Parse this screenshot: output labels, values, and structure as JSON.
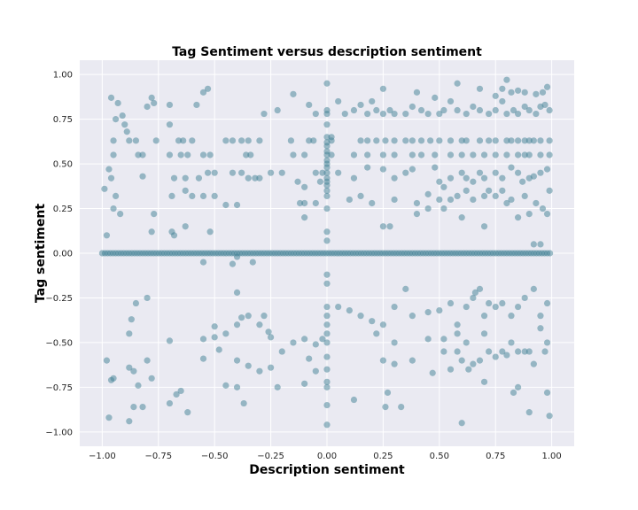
{
  "chart_data": {
    "type": "scatter",
    "title": "Tag Sentiment versus description sentiment",
    "xlabel": "Description sentiment",
    "ylabel": "Tag sentiment",
    "xlim": [
      -1.1,
      1.1
    ],
    "ylim": [
      -1.08,
      1.08
    ],
    "xticks": [
      -1.0,
      -0.75,
      -0.5,
      -0.25,
      0.0,
      0.25,
      0.5,
      0.75,
      1.0
    ],
    "yticks": [
      -1.0,
      -0.75,
      -0.5,
      -0.25,
      0.0,
      0.25,
      0.5,
      0.75,
      1.0
    ],
    "xtick_labels": [
      "−1.00",
      "−0.75",
      "−0.50",
      "−0.25",
      "0.00",
      "0.25",
      "0.50",
      "0.75",
      "1.00"
    ],
    "ytick_labels": [
      "−1.00",
      "−0.75",
      "−0.50",
      "−0.25",
      "0.00",
      "0.25",
      "0.50",
      "0.75",
      "1.00"
    ],
    "grid": true,
    "background_color": "#EAEAF2",
    "point_color": "#3F7F93",
    "point_alpha": 0.5,
    "points": [
      [
        -0.98,
        0.1
      ],
      [
        -0.99,
        0.36
      ],
      [
        -0.97,
        0.47
      ],
      [
        -0.96,
        0.87
      ],
      [
        -0.94,
        0.75
      ],
      [
        -0.93,
        0.84
      ],
      [
        -0.95,
        0.63
      ],
      [
        -0.95,
        0.55
      ],
      [
        -0.96,
        0.42
      ],
      [
        -0.94,
        0.32
      ],
      [
        -0.95,
        0.25
      ],
      [
        -0.92,
        0.22
      ],
      [
        -0.91,
        0.77
      ],
      [
        -0.9,
        0.72
      ],
      [
        -0.89,
        0.68
      ],
      [
        -0.88,
        0.63
      ],
      [
        -0.85,
        0.63
      ],
      [
        -0.84,
        0.55
      ],
      [
        -0.82,
        0.55
      ],
      [
        -0.82,
        0.43
      ],
      [
        -0.8,
        0.82
      ],
      [
        -0.78,
        0.87
      ],
      [
        -0.77,
        0.84
      ],
      [
        -0.78,
        0.12
      ],
      [
        -0.77,
        0.22
      ],
      [
        -0.76,
        0.63
      ],
      [
        -0.7,
        0.83
      ],
      [
        -0.7,
        0.72
      ],
      [
        -0.66,
        0.63
      ],
      [
        -0.64,
        0.63
      ],
      [
        -0.6,
        0.63
      ],
      [
        -0.58,
        0.83
      ],
      [
        -0.55,
        0.9
      ],
      [
        -0.53,
        0.92
      ],
      [
        -0.7,
        0.55
      ],
      [
        -0.65,
        0.55
      ],
      [
        -0.62,
        0.55
      ],
      [
        -0.55,
        0.55
      ],
      [
        -0.52,
        0.55
      ],
      [
        -0.68,
        0.42
      ],
      [
        -0.63,
        0.42
      ],
      [
        -0.57,
        0.42
      ],
      [
        -0.53,
        0.45
      ],
      [
        -0.5,
        0.45
      ],
      [
        -0.69,
        0.32
      ],
      [
        -0.63,
        0.35
      ],
      [
        -0.6,
        0.32
      ],
      [
        -0.55,
        0.32
      ],
      [
        -0.5,
        0.32
      ],
      [
        -0.45,
        0.27
      ],
      [
        -0.4,
        0.27
      ],
      [
        -0.69,
        0.12
      ],
      [
        -0.68,
        0.1
      ],
      [
        -0.63,
        0.15
      ],
      [
        -0.52,
        0.12
      ],
      [
        -0.45,
        0.63
      ],
      [
        -0.42,
        0.63
      ],
      [
        -0.38,
        0.63
      ],
      [
        -0.35,
        0.63
      ],
      [
        -0.3,
        0.63
      ],
      [
        -0.36,
        0.55
      ],
      [
        -0.34,
        0.55
      ],
      [
        -0.42,
        0.45
      ],
      [
        -0.38,
        0.45
      ],
      [
        -0.35,
        0.42
      ],
      [
        -0.32,
        0.42
      ],
      [
        -0.28,
        0.78
      ],
      [
        -0.3,
        0.42
      ],
      [
        -0.25,
        0.45
      ],
      [
        -0.2,
        0.45
      ],
      [
        -0.16,
        0.63
      ],
      [
        -0.15,
        0.55
      ],
      [
        -0.1,
        0.55
      ],
      [
        -0.08,
        0.63
      ],
      [
        -0.06,
        0.63
      ],
      [
        -0.22,
        0.8
      ],
      [
        -0.15,
        0.89
      ],
      [
        -0.08,
        0.83
      ],
      [
        -0.05,
        0.78
      ],
      [
        -0.13,
        0.4
      ],
      [
        -0.1,
        0.37
      ],
      [
        -0.05,
        0.45
      ],
      [
        -0.02,
        0.45
      ],
      [
        -0.03,
        0.4
      ],
      [
        -0.12,
        0.28
      ],
      [
        -0.1,
        0.28
      ],
      [
        -0.05,
        0.28
      ],
      [
        -0.1,
        0.2
      ],
      [
        -0.8,
        -0.25
      ],
      [
        -0.85,
        -0.28
      ],
      [
        -0.87,
        -0.37
      ],
      [
        -0.88,
        -0.45
      ],
      [
        -0.95,
        -0.7
      ],
      [
        -0.96,
        -0.71
      ],
      [
        -0.97,
        -0.92
      ],
      [
        -0.98,
        -0.6
      ],
      [
        -0.88,
        -0.64
      ],
      [
        -0.86,
        -0.66
      ],
      [
        -0.84,
        -0.74
      ],
      [
        -0.82,
        -0.86
      ],
      [
        -0.86,
        -0.86
      ],
      [
        -0.88,
        -0.94
      ],
      [
        -0.8,
        -0.6
      ],
      [
        -0.78,
        -0.7
      ],
      [
        -0.7,
        -0.84
      ],
      [
        -0.67,
        -0.79
      ],
      [
        -0.65,
        -0.77
      ],
      [
        -0.62,
        -0.89
      ],
      [
        -0.7,
        -0.49
      ],
      [
        -0.55,
        -0.48
      ],
      [
        -0.5,
        -0.47
      ],
      [
        -0.48,
        -0.54
      ],
      [
        -0.45,
        -0.45
      ],
      [
        -0.4,
        -0.4
      ],
      [
        -0.38,
        -0.36
      ],
      [
        -0.35,
        -0.35
      ],
      [
        -0.3,
        -0.4
      ],
      [
        -0.28,
        -0.35
      ],
      [
        -0.26,
        -0.44
      ],
      [
        -0.25,
        -0.47
      ],
      [
        -0.4,
        -0.22
      ],
      [
        -0.5,
        -0.41
      ],
      [
        -0.55,
        -0.59
      ],
      [
        -0.45,
        -0.74
      ],
      [
        -0.4,
        -0.75
      ],
      [
        -0.37,
        -0.84
      ],
      [
        -0.4,
        -0.6
      ],
      [
        -0.35,
        -0.63
      ],
      [
        -0.3,
        -0.66
      ],
      [
        -0.25,
        -0.64
      ],
      [
        -0.22,
        -0.75
      ],
      [
        -0.2,
        -0.55
      ],
      [
        -0.15,
        -0.5
      ],
      [
        -0.1,
        -0.48
      ],
      [
        -0.05,
        -0.51
      ],
      [
        -0.08,
        -0.59
      ],
      [
        -0.05,
        -0.66
      ],
      [
        -0.1,
        -0.73
      ],
      [
        -0.02,
        -0.48
      ],
      [
        -0.4,
        -0.02
      ],
      [
        -0.42,
        -0.06
      ],
      [
        -0.33,
        -0.05
      ],
      [
        -0.55,
        -0.05
      ],
      [
        0.0,
        0.95
      ],
      [
        0.0,
        0.8
      ],
      [
        0.0,
        0.78
      ],
      [
        0.0,
        0.72
      ],
      [
        0.0,
        0.65
      ],
      [
        0.0,
        0.62
      ],
      [
        0.0,
        0.6
      ],
      [
        0.0,
        0.57
      ],
      [
        0.0,
        0.55
      ],
      [
        0.0,
        0.52
      ],
      [
        0.0,
        0.5
      ],
      [
        0.0,
        0.48
      ],
      [
        0.0,
        0.45
      ],
      [
        0.0,
        0.42
      ],
      [
        0.0,
        0.4
      ],
      [
        0.0,
        0.38
      ],
      [
        0.0,
        0.35
      ],
      [
        0.0,
        0.32
      ],
      [
        0.0,
        0.25
      ],
      [
        0.0,
        0.12
      ],
      [
        0.0,
        0.07
      ],
      [
        0.02,
        0.63
      ],
      [
        0.02,
        0.55
      ],
      [
        0.02,
        0.65
      ],
      [
        0.0,
        -0.3
      ],
      [
        0.0,
        -0.35
      ],
      [
        0.0,
        -0.4
      ],
      [
        0.0,
        -0.45
      ],
      [
        0.0,
        -0.5
      ],
      [
        0.0,
        -0.58
      ],
      [
        0.0,
        -0.65
      ],
      [
        0.0,
        -0.72
      ],
      [
        0.0,
        -0.75
      ],
      [
        0.0,
        -0.85
      ],
      [
        0.0,
        -0.96
      ],
      [
        0.0,
        -0.17
      ],
      [
        0.0,
        -0.12
      ],
      [
        0.05,
        0.85
      ],
      [
        0.08,
        0.78
      ],
      [
        0.12,
        0.8
      ],
      [
        0.15,
        0.83
      ],
      [
        0.18,
        0.78
      ],
      [
        0.2,
        0.85
      ],
      [
        0.22,
        0.8
      ],
      [
        0.25,
        0.78
      ],
      [
        0.28,
        0.8
      ],
      [
        0.3,
        0.78
      ],
      [
        0.35,
        0.78
      ],
      [
        0.38,
        0.82
      ],
      [
        0.42,
        0.8
      ],
      [
        0.45,
        0.78
      ],
      [
        0.48,
        0.87
      ],
      [
        0.5,
        0.78
      ],
      [
        0.52,
        0.8
      ],
      [
        0.55,
        0.85
      ],
      [
        0.58,
        0.8
      ],
      [
        0.62,
        0.78
      ],
      [
        0.65,
        0.82
      ],
      [
        0.68,
        0.8
      ],
      [
        0.72,
        0.78
      ],
      [
        0.75,
        0.8
      ],
      [
        0.78,
        0.85
      ],
      [
        0.8,
        0.78
      ],
      [
        0.83,
        0.8
      ],
      [
        0.85,
        0.78
      ],
      [
        0.88,
        0.82
      ],
      [
        0.9,
        0.8
      ],
      [
        0.93,
        0.78
      ],
      [
        0.95,
        0.82
      ],
      [
        0.97,
        0.83
      ],
      [
        0.99,
        0.8
      ],
      [
        0.25,
        0.92
      ],
      [
        0.4,
        0.9
      ],
      [
        0.58,
        0.95
      ],
      [
        0.68,
        0.92
      ],
      [
        0.75,
        0.88
      ],
      [
        0.78,
        0.92
      ],
      [
        0.8,
        0.97
      ],
      [
        0.82,
        0.9
      ],
      [
        0.85,
        0.91
      ],
      [
        0.88,
        0.9
      ],
      [
        0.93,
        0.89
      ],
      [
        0.96,
        0.9
      ],
      [
        0.98,
        0.93
      ],
      [
        0.15,
        0.63
      ],
      [
        0.18,
        0.63
      ],
      [
        0.22,
        0.63
      ],
      [
        0.26,
        0.63
      ],
      [
        0.3,
        0.63
      ],
      [
        0.35,
        0.63
      ],
      [
        0.38,
        0.63
      ],
      [
        0.42,
        0.63
      ],
      [
        0.46,
        0.63
      ],
      [
        0.5,
        0.63
      ],
      [
        0.55,
        0.63
      ],
      [
        0.6,
        0.63
      ],
      [
        0.62,
        0.63
      ],
      [
        0.68,
        0.63
      ],
      [
        0.72,
        0.63
      ],
      [
        0.75,
        0.63
      ],
      [
        0.8,
        0.63
      ],
      [
        0.82,
        0.63
      ],
      [
        0.85,
        0.63
      ],
      [
        0.88,
        0.63
      ],
      [
        0.9,
        0.63
      ],
      [
        0.92,
        0.63
      ],
      [
        0.95,
        0.63
      ],
      [
        0.99,
        0.63
      ],
      [
        0.12,
        0.55
      ],
      [
        0.18,
        0.55
      ],
      [
        0.25,
        0.55
      ],
      [
        0.3,
        0.55
      ],
      [
        0.38,
        0.55
      ],
      [
        0.42,
        0.55
      ],
      [
        0.48,
        0.55
      ],
      [
        0.55,
        0.55
      ],
      [
        0.6,
        0.55
      ],
      [
        0.65,
        0.55
      ],
      [
        0.7,
        0.55
      ],
      [
        0.75,
        0.55
      ],
      [
        0.8,
        0.55
      ],
      [
        0.85,
        0.55
      ],
      [
        0.88,
        0.55
      ],
      [
        0.9,
        0.55
      ],
      [
        0.95,
        0.55
      ],
      [
        0.99,
        0.55
      ],
      [
        0.05,
        0.45
      ],
      [
        0.12,
        0.42
      ],
      [
        0.18,
        0.48
      ],
      [
        0.25,
        0.47
      ],
      [
        0.3,
        0.42
      ],
      [
        0.35,
        0.45
      ],
      [
        0.38,
        0.47
      ],
      [
        0.48,
        0.48
      ],
      [
        0.5,
        0.4
      ],
      [
        0.52,
        0.37
      ],
      [
        0.55,
        0.42
      ],
      [
        0.6,
        0.45
      ],
      [
        0.62,
        0.42
      ],
      [
        0.65,
        0.4
      ],
      [
        0.68,
        0.45
      ],
      [
        0.7,
        0.42
      ],
      [
        0.75,
        0.45
      ],
      [
        0.78,
        0.42
      ],
      [
        0.82,
        0.48
      ],
      [
        0.85,
        0.45
      ],
      [
        0.87,
        0.4
      ],
      [
        0.9,
        0.42
      ],
      [
        0.92,
        0.43
      ],
      [
        0.95,
        0.45
      ],
      [
        0.98,
        0.47
      ],
      [
        0.1,
        0.3
      ],
      [
        0.15,
        0.32
      ],
      [
        0.2,
        0.28
      ],
      [
        0.3,
        0.3
      ],
      [
        0.4,
        0.28
      ],
      [
        0.45,
        0.33
      ],
      [
        0.5,
        0.3
      ],
      [
        0.55,
        0.3
      ],
      [
        0.58,
        0.32
      ],
      [
        0.62,
        0.35
      ],
      [
        0.65,
        0.3
      ],
      [
        0.7,
        0.32
      ],
      [
        0.72,
        0.35
      ],
      [
        0.75,
        0.32
      ],
      [
        0.78,
        0.35
      ],
      [
        0.8,
        0.28
      ],
      [
        0.82,
        0.3
      ],
      [
        0.88,
        0.32
      ],
      [
        0.93,
        0.28
      ],
      [
        0.96,
        0.25
      ],
      [
        0.99,
        0.35
      ],
      [
        0.4,
        0.22
      ],
      [
        0.45,
        0.25
      ],
      [
        0.52,
        0.25
      ],
      [
        0.6,
        0.2
      ],
      [
        0.7,
        0.15
      ],
      [
        0.85,
        0.2
      ],
      [
        0.9,
        0.22
      ],
      [
        0.98,
        0.22
      ],
      [
        0.92,
        0.05
      ],
      [
        0.95,
        0.05
      ],
      [
        0.25,
        0.15
      ],
      [
        0.28,
        0.15
      ],
      [
        0.05,
        -0.3
      ],
      [
        0.1,
        -0.32
      ],
      [
        0.15,
        -0.35
      ],
      [
        0.2,
        -0.38
      ],
      [
        0.25,
        -0.4
      ],
      [
        0.3,
        -0.3
      ],
      [
        0.35,
        -0.2
      ],
      [
        0.38,
        -0.35
      ],
      [
        0.45,
        -0.33
      ],
      [
        0.5,
        -0.32
      ],
      [
        0.55,
        -0.28
      ],
      [
        0.58,
        -0.4
      ],
      [
        0.62,
        -0.3
      ],
      [
        0.65,
        -0.25
      ],
      [
        0.68,
        -0.2
      ],
      [
        0.7,
        -0.35
      ],
      [
        0.72,
        -0.28
      ],
      [
        0.75,
        -0.3
      ],
      [
        0.78,
        -0.28
      ],
      [
        0.82,
        -0.35
      ],
      [
        0.85,
        -0.3
      ],
      [
        0.88,
        -0.25
      ],
      [
        0.92,
        -0.2
      ],
      [
        0.95,
        -0.35
      ],
      [
        0.98,
        -0.28
      ],
      [
        0.22,
        -0.45
      ],
      [
        0.3,
        -0.5
      ],
      [
        0.45,
        -0.48
      ],
      [
        0.52,
        -0.48
      ],
      [
        0.58,
        -0.45
      ],
      [
        0.62,
        -0.5
      ],
      [
        0.66,
        -0.22
      ],
      [
        0.7,
        -0.45
      ],
      [
        0.72,
        -0.55
      ],
      [
        0.78,
        -0.55
      ],
      [
        0.82,
        -0.5
      ],
      [
        0.85,
        -0.55
      ],
      [
        0.9,
        -0.55
      ],
      [
        0.95,
        -0.42
      ],
      [
        0.98,
        -0.5
      ],
      [
        0.25,
        -0.6
      ],
      [
        0.3,
        -0.62
      ],
      [
        0.38,
        -0.6
      ],
      [
        0.47,
        -0.67
      ],
      [
        0.52,
        -0.55
      ],
      [
        0.58,
        -0.55
      ],
      [
        0.6,
        -0.6
      ],
      [
        0.63,
        -0.65
      ],
      [
        0.68,
        -0.6
      ],
      [
        0.75,
        -0.58
      ],
      [
        0.8,
        -0.57
      ],
      [
        0.88,
        -0.55
      ],
      [
        0.92,
        -0.62
      ],
      [
        0.97,
        -0.55
      ],
      [
        0.12,
        -0.82
      ],
      [
        0.27,
        -0.78
      ],
      [
        0.26,
        -0.86
      ],
      [
        0.33,
        -0.86
      ],
      [
        0.6,
        -0.95
      ],
      [
        0.7,
        -0.72
      ],
      [
        0.85,
        -0.75
      ],
      [
        0.9,
        -0.89
      ],
      [
        0.98,
        -0.78
      ],
      [
        0.99,
        -0.91
      ],
      [
        0.83,
        -0.78
      ],
      [
        0.65,
        -0.62
      ],
      [
        0.55,
        -0.65
      ]
    ],
    "zero_line_x_start": -1.0,
    "zero_line_x_end": 1.0,
    "zero_line_step": 0.012
  }
}
